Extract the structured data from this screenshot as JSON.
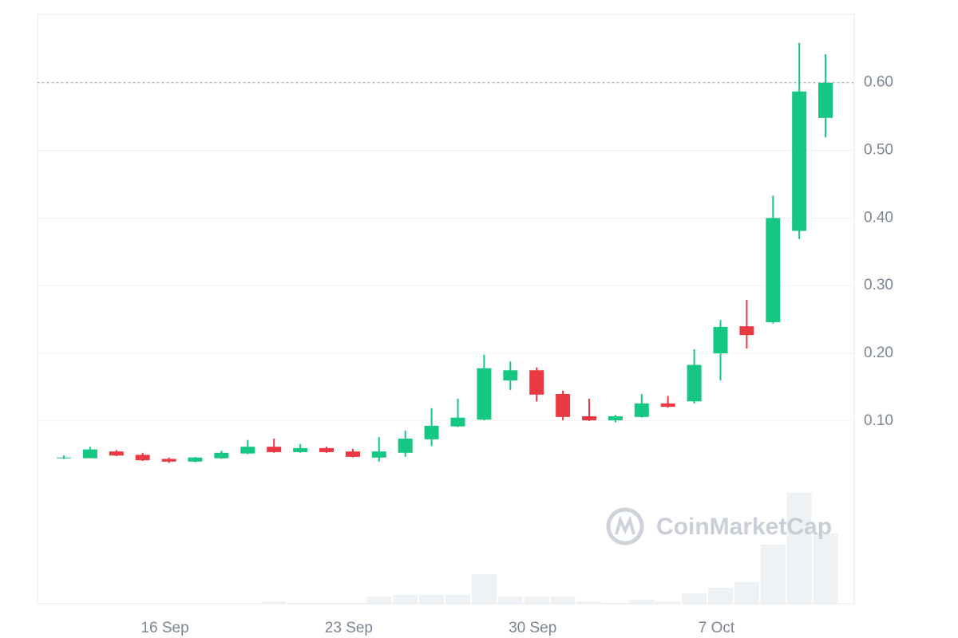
{
  "chart_data": {
    "type": "candlestick",
    "categories": [
      null,
      null,
      null,
      null,
      "16 Sep",
      null,
      null,
      null,
      null,
      null,
      null,
      "23 Sep",
      null,
      null,
      null,
      null,
      null,
      null,
      "30 Sep",
      null,
      null,
      null,
      null,
      null,
      null,
      "7 Oct",
      null,
      null,
      null,
      null
    ],
    "open": [
      0.045,
      0.045,
      0.055,
      0.05,
      0.044,
      0.04,
      0.045,
      0.052,
      0.062,
      0.054,
      0.06,
      0.055,
      0.046,
      0.053,
      0.073,
      0.092,
      0.102,
      0.16,
      0.175,
      0.14,
      0.107,
      0.101,
      0.106,
      0.126,
      0.129,
      0.2,
      0.24,
      0.246,
      0.381,
      0.548
    ],
    "high": [
      0.049,
      0.062,
      0.057,
      0.053,
      0.046,
      0.047,
      0.056,
      0.072,
      0.074,
      0.066,
      0.062,
      0.059,
      0.076,
      0.086,
      0.119,
      0.133,
      0.198,
      0.188,
      0.179,
      0.145,
      0.133,
      0.109,
      0.14,
      0.137,
      0.206,
      0.249,
      0.279,
      0.433,
      0.659,
      0.642
    ],
    "low": [
      0.044,
      0.045,
      0.048,
      0.041,
      0.038,
      0.039,
      0.044,
      0.051,
      0.053,
      0.053,
      0.053,
      0.046,
      0.04,
      0.047,
      0.063,
      0.091,
      0.101,
      0.146,
      0.129,
      0.101,
      0.1,
      0.098,
      0.105,
      0.12,
      0.126,
      0.16,
      0.207,
      0.244,
      0.369,
      0.519
    ],
    "close": [
      0.046,
      0.058,
      0.049,
      0.042,
      0.04,
      0.046,
      0.053,
      0.062,
      0.054,
      0.06,
      0.054,
      0.047,
      0.055,
      0.074,
      0.093,
      0.105,
      0.178,
      0.175,
      0.139,
      0.106,
      0.101,
      0.107,
      0.126,
      0.121,
      0.183,
      0.239,
      0.227,
      0.4,
      0.587,
      0.6
    ],
    "volume": [
      0,
      0,
      0,
      0,
      0,
      0,
      0,
      0,
      3,
      1,
      1,
      1,
      9,
      11,
      11,
      11,
      37,
      9,
      9,
      9,
      3,
      1,
      5,
      3,
      13,
      20,
      27,
      74,
      139,
      88
    ],
    "up_color": "#16c784",
    "down_color": "#ea3943",
    "volume_color": "#eff2f5",
    "ylim": [
      -0.17,
      0.701
    ],
    "yticks": [
      {
        "value": 0.1,
        "label": "0.10"
      },
      {
        "value": 0.2,
        "label": "0.20"
      },
      {
        "value": 0.3,
        "label": "0.30"
      },
      {
        "value": 0.4,
        "label": "0.40"
      },
      {
        "value": 0.5,
        "label": "0.50"
      },
      {
        "value": 0.6,
        "label": "0.60"
      }
    ],
    "price_line": 0.6,
    "grid": true,
    "watermark": "CoinMarketCap"
  }
}
